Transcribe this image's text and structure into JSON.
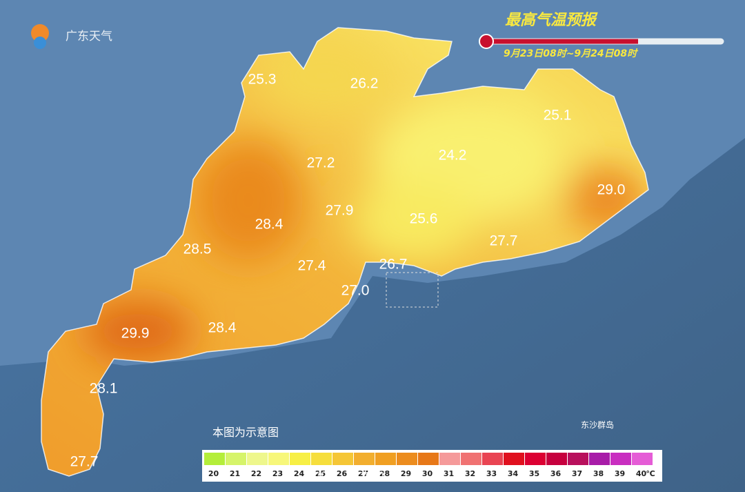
{
  "header": {
    "logo": "广东天气",
    "title": "最高气温预报",
    "period": "9月23日08时~9月24日08时"
  },
  "map": {
    "labels": [
      "25.3",
      "26.2",
      "25.1",
      "27.2",
      "24.2",
      "29.0",
      "27.9",
      "28.4",
      "25.6",
      "28.5",
      "27.7",
      "27.4",
      "26.7",
      "27.0",
      "29.9",
      "28.4",
      "28.1",
      "27.7"
    ],
    "islands": "东沙群岛",
    "note": "本图为示意图"
  },
  "legend": {
    "ticks": [
      20,
      21,
      22,
      23,
      24,
      25,
      26,
      27,
      28,
      29,
      30,
      31,
      32,
      33,
      34,
      35,
      36,
      37,
      38,
      39,
      40
    ],
    "unit": "℃",
    "colors": [
      "#b4ee3a",
      "#d6f46a",
      "#eef78c",
      "#f7f77a",
      "#f7ef45",
      "#f6de3c",
      "#f5c636",
      "#f2ae2e",
      "#f09f22",
      "#ec8c1e",
      "#e77818",
      "#f59a9a",
      "#f07272",
      "#e94452",
      "#e0101e",
      "#dc0032",
      "#c6003e",
      "#b8105c",
      "#a81ca8",
      "#c92ec0",
      "#e55cd6"
    ],
    "watermark": "@广东天气"
  }
}
